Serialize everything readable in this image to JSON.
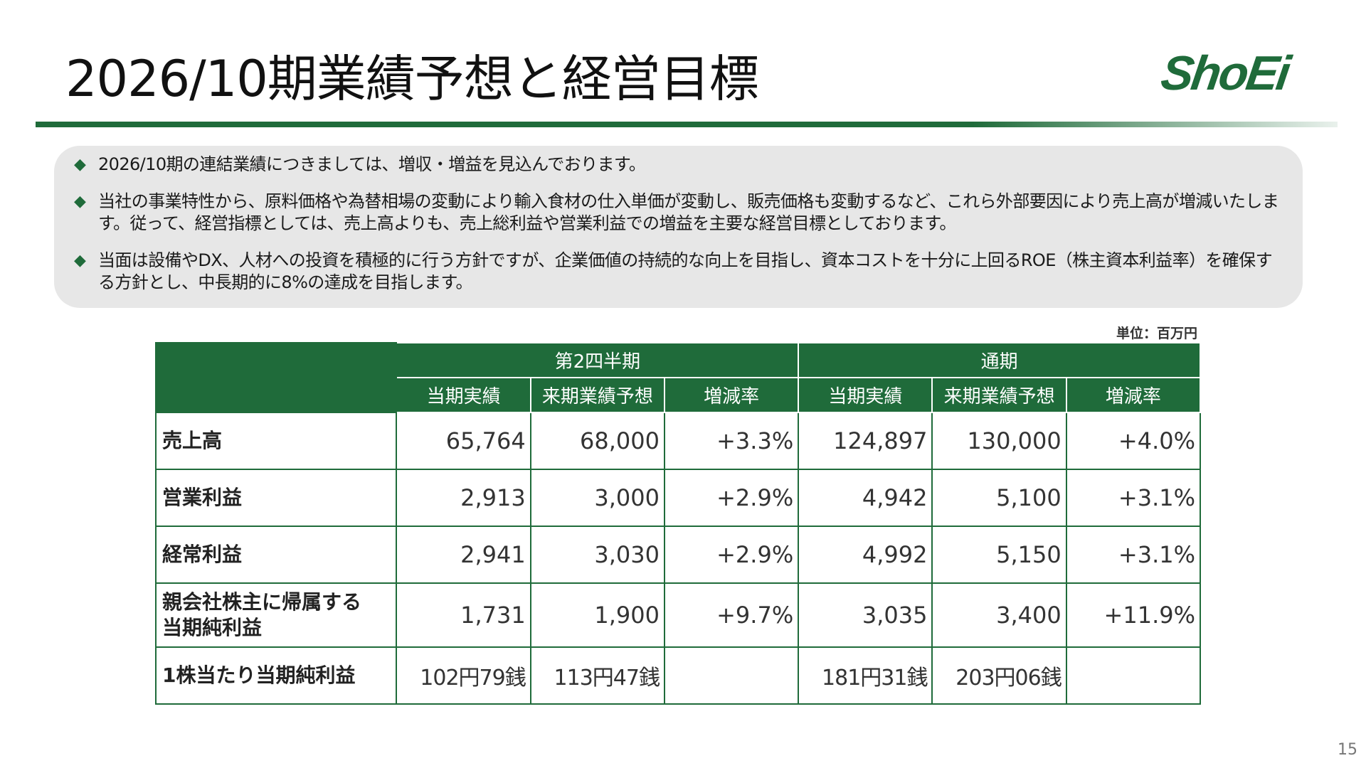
{
  "header": {
    "title": "2026/10期業績予想と経営目標",
    "logo_text": "ShoEi"
  },
  "notes": [
    "2026/10期の連結業績につきましては、増収・増益を見込んでおります。",
    "当社の事業特性から、原料価格や為替相場の変動により輸入食材の仕入単価が変動し、販売価格も変動するなど、これら外部要因により売上高が増減いたします。従って、経営指標としては、売上高よりも、売上総利益や営業利益での増益を主要な経営目標としております。",
    "当面は設備やDX、人材への投資を積極的に行う方針ですが、企業価値の持続的な向上を目指し、資本コストを十分に上回るROE（株主資本利益率）を確保する方針とし、中長期的に8%の達成を目指します。"
  ],
  "unit_label": "単位：百万円",
  "table": {
    "group_headers": [
      "第2四半期",
      "通期"
    ],
    "column_headers": [
      "当期実績",
      "来期業績予想",
      "増減率",
      "当期実績",
      "来期業績予想",
      "増減率"
    ],
    "rows": [
      {
        "label": "売上高",
        "cells": [
          "65,764",
          "68,000",
          "+3.3%",
          "124,897",
          "130,000",
          "+4.0%"
        ]
      },
      {
        "label": "営業利益",
        "cells": [
          "2,913",
          "3,000",
          "+2.9%",
          "4,942",
          "5,100",
          "+3.1%"
        ]
      },
      {
        "label": "経常利益",
        "cells": [
          "2,941",
          "3,030",
          "+2.9%",
          "4,992",
          "5,150",
          "+3.1%"
        ]
      },
      {
        "label_line1": "親会社株主に帰属する",
        "label_line2": "当期純利益",
        "cells": [
          "1,731",
          "1,900",
          "+9.7%",
          "3,035",
          "3,400",
          "+11.9%"
        ]
      },
      {
        "label": "1株当たり当期純利益",
        "cells": [
          "102円79銭",
          "113円47銭",
          "",
          "181円31銭",
          "203円06銭",
          ""
        ]
      }
    ]
  },
  "page_number": "15",
  "colors": {
    "brand_green": "#1f6b3a",
    "note_background": "#e7e7e7"
  },
  "icons": {
    "bullet": "diamond-bullet-icon"
  }
}
